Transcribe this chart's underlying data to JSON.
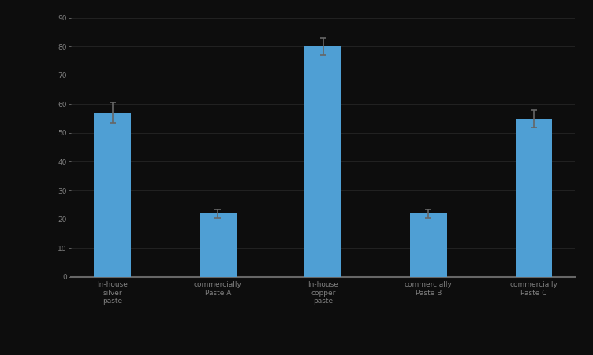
{
  "categories": [
    "In-house\nsilver\npaste",
    "commercially\nPaste A",
    "In-house\ncopper\npaste",
    "commercially\nPaste B",
    "commercially\nPaste C"
  ],
  "values": [
    57,
    22,
    80,
    22,
    55
  ],
  "errors": [
    3.5,
    1.5,
    3.0,
    1.5,
    3.0
  ],
  "bar_color": "#4f9fd4",
  "background_color": "#0d0d0d",
  "text_color": "#808080",
  "spine_color": "#666666",
  "ylim": [
    0,
    90
  ],
  "yticks": [
    0,
    10,
    20,
    30,
    40,
    50,
    60,
    70,
    80,
    90
  ],
  "bar_width": 0.35,
  "figsize": [
    7.52,
    4.51
  ],
  "dpi": 100,
  "grid_color": "#2a2a2a",
  "errorbar_color": "#666666",
  "errorbar_linewidth": 1.2,
  "errorbar_capsize": 3,
  "tick_labelsize": 6.5,
  "xlabel_fontsize": 6.5
}
